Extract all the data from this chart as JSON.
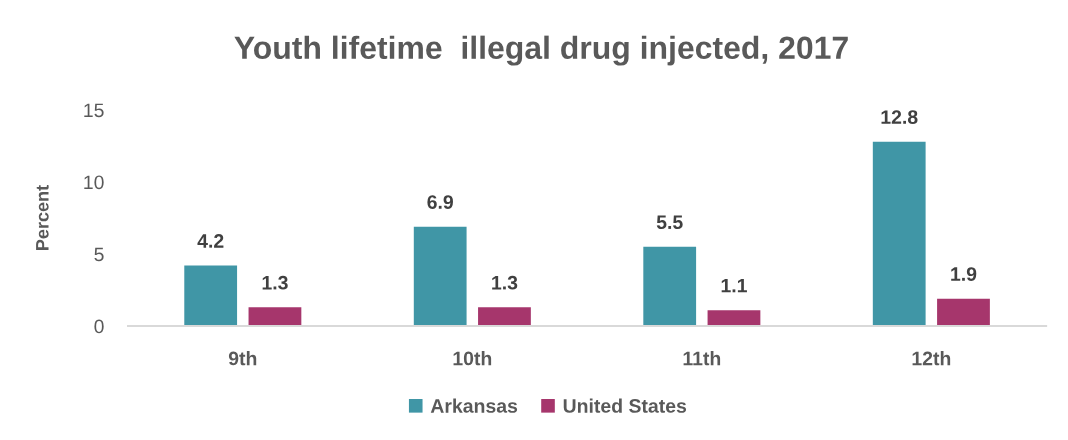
{
  "chart_data": {
    "type": "bar",
    "title": "Youth lifetime  illegal drug injected, 2017",
    "ylabel": "Percent",
    "categories": [
      "9th",
      "10th",
      "11th",
      "12th"
    ],
    "series": [
      {
        "name": "Arkansas",
        "color": "#4096a6",
        "values": [
          4.2,
          6.9,
          5.5,
          12.8
        ]
      },
      {
        "name": "United States",
        "color": "#a6366c",
        "values": [
          1.3,
          1.3,
          1.1,
          1.9
        ]
      }
    ],
    "ylim": [
      0,
      15
    ],
    "yticks": [
      0,
      5,
      10,
      15
    ],
    "legend": "bottom",
    "data_labels": true
  }
}
